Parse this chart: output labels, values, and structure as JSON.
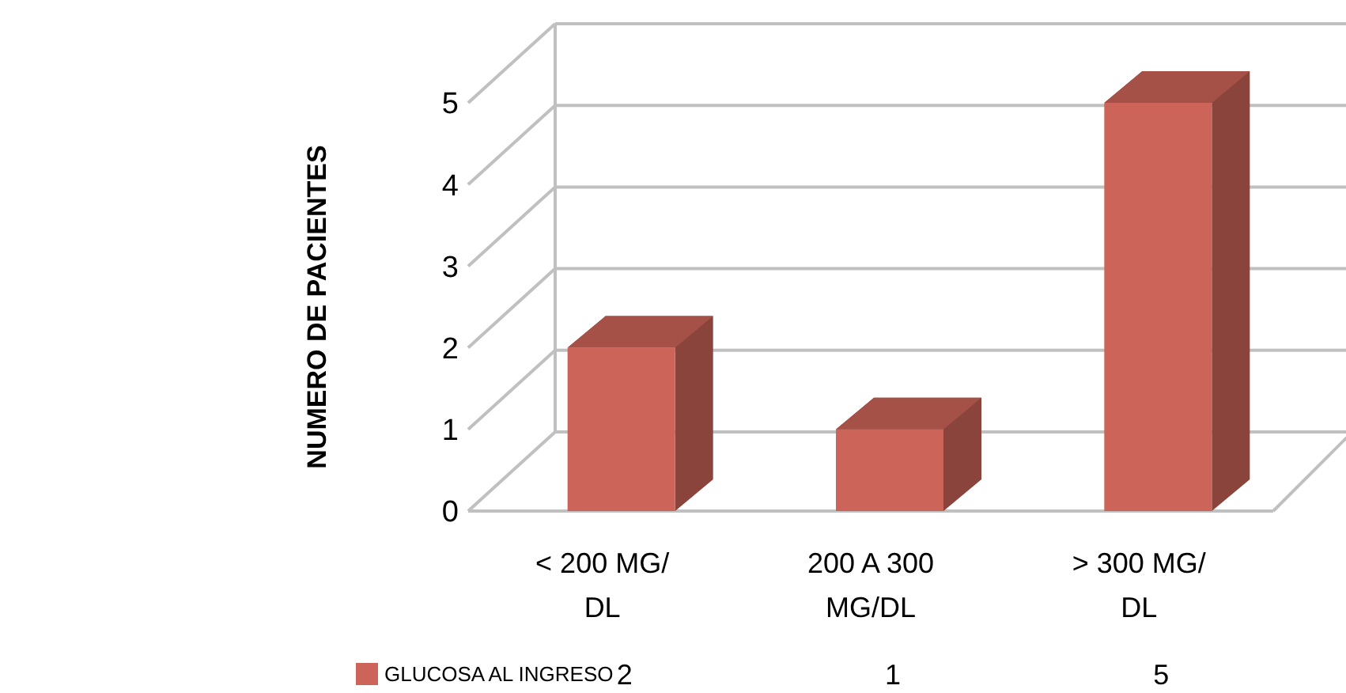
{
  "chart_data": {
    "type": "bar",
    "ylabel": "NUMERO DE PACIENTES",
    "categories": [
      "< 200 MG/DL",
      "200 A 300 MG/DL",
      "> 300 MG/DL"
    ],
    "series": [
      {
        "name": "GLUCOSA AL INGRESO",
        "color": "#cd6459",
        "values": [
          2,
          1,
          5
        ]
      }
    ],
    "ylim": [
      0,
      5
    ],
    "yticks": [
      0,
      1,
      2,
      3,
      4,
      5
    ],
    "grid": "y",
    "data_labels": true,
    "legend": "bottom left"
  }
}
